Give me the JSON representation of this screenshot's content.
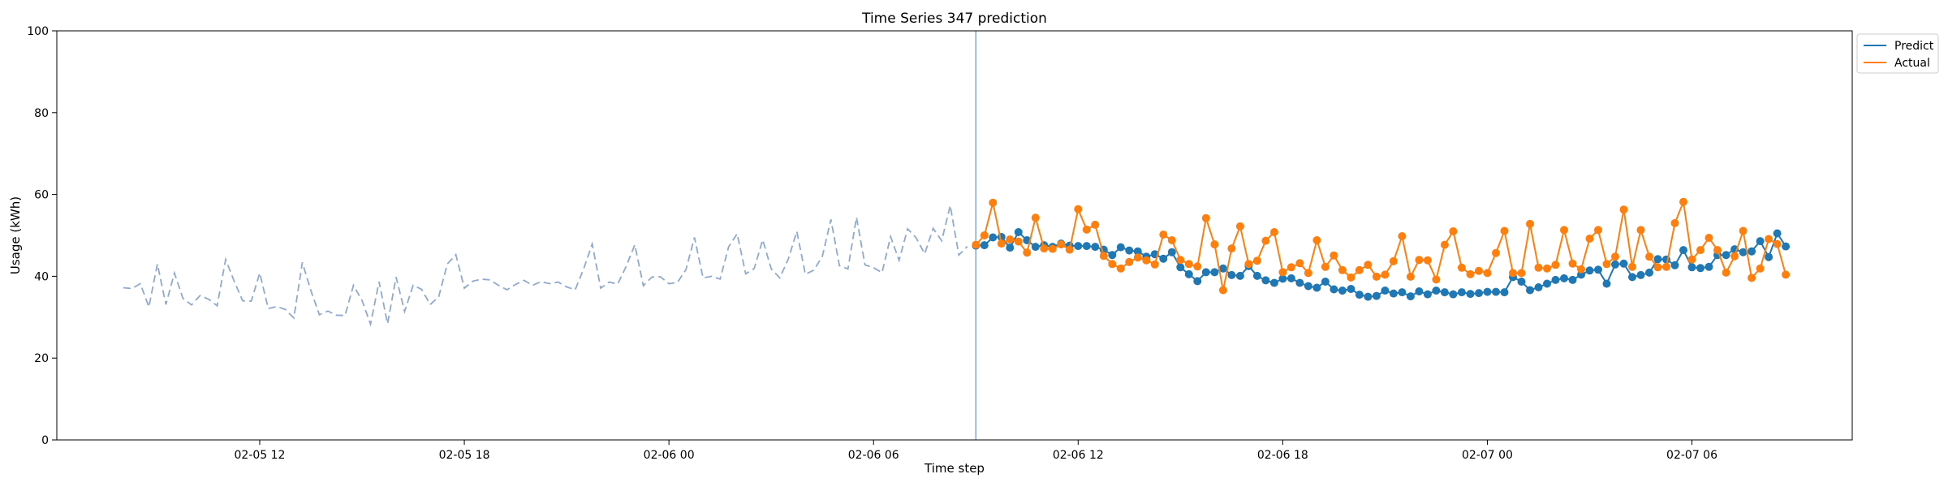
{
  "chart_data": {
    "type": "line",
    "title": "Time Series 347 prediction",
    "xlabel": "Time step",
    "ylabel": "Usage (kWh)",
    "ylim": [
      0,
      100
    ],
    "y_ticks": [
      0,
      20,
      40,
      60,
      80,
      100
    ],
    "x_ticks": [
      "02-05 12",
      "02-05 18",
      "02-06 00",
      "02-06 06",
      "02-06 12",
      "02-06 18",
      "02-07 00",
      "02-07 06"
    ],
    "x_start": "02-05 08:00",
    "x_end": "02-07 08:45",
    "x_step_minutes": 15,
    "x_range": [
      "02-05 06:03",
      "02-07 10:42"
    ],
    "forecast_start": "02-06 09:00",
    "grid": false,
    "legend_position": "upper right outside",
    "history": {
      "x_start": "02-05 08:00",
      "values": [
        37.2,
        37.0,
        38.2,
        32.5,
        43.0,
        33.1,
        40.8,
        34.6,
        33.0,
        35.3,
        34.4,
        32.8,
        44.1,
        38.8,
        34.0,
        33.9,
        40.8,
        32.1,
        32.6,
        31.9,
        29.8,
        43.4,
        36.5,
        30.6,
        31.5,
        30.5,
        30.4,
        37.8,
        34.1,
        28.3,
        38.7,
        28.4,
        39.8,
        31.4,
        37.8,
        36.8,
        33.1,
        35.0,
        43.0,
        45.3,
        37.1,
        38.8,
        39.3,
        39.1,
        37.8,
        36.7,
        38.0,
        39.0,
        37.8,
        38.7,
        38.2,
        38.6,
        37.4,
        36.7,
        41.8,
        47.9,
        37.1,
        38.6,
        38.1,
        42.5,
        47.7,
        37.7,
        39.8,
        39.9,
        38.2,
        38.5,
        41.6,
        49.5,
        39.6,
        40.0,
        39.3,
        47.2,
        50.4,
        40.6,
        41.9,
        48.9,
        41.8,
        39.6,
        44.2,
        51.0,
        40.5,
        41.5,
        44.9,
        53.9,
        42.6,
        41.8,
        54.4,
        42.8,
        42.1,
        40.9,
        49.7,
        43.9,
        51.6,
        49.4,
        45.5,
        51.7,
        48.7,
        57.3,
        45.2,
        47.3
      ]
    },
    "series": [
      {
        "name": "Predict",
        "color": "#1f77b4",
        "x_start": "02-06 09:00",
        "values": [
          47.5,
          47.6,
          49.5,
          49.6,
          47.0,
          50.8,
          48.8,
          47.2,
          47.6,
          47.2,
          48.0,
          47.5,
          47.4,
          47.4,
          47.2,
          46.5,
          45.2,
          47.1,
          46.3,
          46.1,
          44.8,
          45.4,
          44.3,
          45.9,
          42.2,
          40.5,
          38.8,
          41.0,
          41.0,
          41.9,
          40.3,
          40.1,
          42.5,
          40.1,
          39.0,
          38.4,
          39.4,
          39.5,
          38.4,
          37.6,
          37.2,
          38.7,
          36.8,
          36.5,
          36.9,
          35.5,
          35.0,
          35.2,
          36.5,
          35.8,
          36.1,
          35.1,
          36.3,
          35.6,
          36.5,
          36.1,
          35.6,
          36.1,
          35.7,
          35.9,
          36.2,
          36.2,
          36.1,
          39.8,
          38.7,
          36.6,
          37.3,
          38.2,
          39.1,
          39.5,
          39.1,
          40.4,
          41.4,
          41.6,
          38.2,
          42.9,
          43.1,
          39.8,
          40.3,
          40.9,
          44.2,
          44.1,
          42.7,
          46.4,
          42.2,
          42.0,
          42.3,
          45.2,
          45.2,
          46.6,
          45.9,
          46.1,
          48.6,
          44.7,
          50.5,
          47.3
        ]
      },
      {
        "name": "Actual",
        "color": "#ff7f0e",
        "x_start": "02-06 09:00",
        "values": [
          47.7,
          50.0,
          58.0,
          48.0,
          49.0,
          48.5,
          45.8,
          54.3,
          46.8,
          46.7,
          47.8,
          46.5,
          56.4,
          51.4,
          52.6,
          45.0,
          43.0,
          41.9,
          43.5,
          44.6,
          43.9,
          42.9,
          50.2,
          48.8,
          44.0,
          43.0,
          42.4,
          54.2,
          47.8,
          36.6,
          46.8,
          52.2,
          43.0,
          43.8,
          48.7,
          50.8,
          41.0,
          42.2,
          43.2,
          40.8,
          48.8,
          42.3,
          45.1,
          41.5,
          39.7,
          41.5,
          42.8,
          39.9,
          40.4,
          43.7,
          49.8,
          39.9,
          44.0,
          43.9,
          39.2,
          47.7,
          51.0,
          42.1,
          40.5,
          41.3,
          40.8,
          45.7,
          51.1,
          40.8,
          40.8,
          52.8,
          42.1,
          41.9,
          42.8,
          51.3,
          43.1,
          41.7,
          49.2,
          51.3,
          43.0,
          44.8,
          56.3,
          42.3,
          51.3,
          44.8,
          42.2,
          42.3,
          53.0,
          58.2,
          44.1,
          46.4,
          49.4,
          46.4,
          40.9,
          44.9,
          51.1,
          39.6,
          41.9,
          49.1,
          47.9,
          40.4
        ]
      }
    ]
  }
}
